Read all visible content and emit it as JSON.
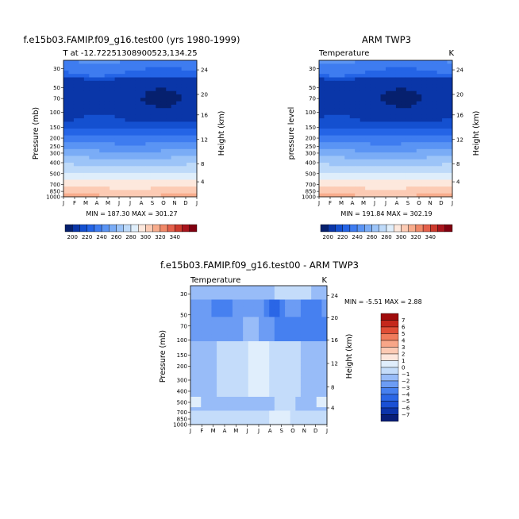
{
  "colors": {
    "scale": [
      "#06206e",
      "#0a36a8",
      "#1450d0",
      "#2464e6",
      "#3e7cf0",
      "#5a94f4",
      "#7aacf6",
      "#9cc4f8",
      "#bedaf9",
      "#dfeefb",
      "#fde8dd",
      "#fccbb4",
      "#f8ac8c",
      "#f08868",
      "#e4604a",
      "#cc3a2c",
      "#a8141c",
      "#800010"
    ],
    "diff_scale": [
      "#081e78",
      "#0c34aa",
      "#1a50d4",
      "#2a66e6",
      "#4680f0",
      "#6c9cf4",
      "#98bcf8",
      "#c4dcfa",
      "#e0eefc",
      "#fde6dc",
      "#fccab4",
      "#f8a688",
      "#f07c5c",
      "#e04e36",
      "#c4281c",
      "#a00c0c"
    ]
  },
  "chart_data": [
    {
      "type": "heatmap",
      "panel": "top-left",
      "title": "f.e15b03.FAMIP.f09_g16.test00 (yrs 1980-1999)",
      "subtitle": "T at -12.72251308900523,134.25",
      "ylabel": "Pressure (mb)",
      "y2label": "Height (km)",
      "x_ticks": [
        "J",
        "F",
        "M",
        "A",
        "M",
        "J",
        "J",
        "A",
        "S",
        "O",
        "N",
        "D",
        "J"
      ],
      "y_ticks": [
        "30",
        "50",
        "70",
        "100",
        "150",
        "200",
        "250",
        "300",
        "400",
        "500",
        "700",
        "850",
        "1000"
      ],
      "y2_ticks": [
        "24",
        "20",
        "16",
        "12",
        "8",
        "4"
      ],
      "stats_text": "MIN = 187.30 MAX = 301.27",
      "min": 187.3,
      "max": 301.27
    },
    {
      "type": "heatmap",
      "panel": "top-right",
      "title": "ARM TWP3",
      "left_label": "Temperature",
      "right_label": "K",
      "ylabel": "pressure level",
      "y2label": "Height (km)",
      "x_ticks": [
        "J",
        "F",
        "M",
        "A",
        "M",
        "J",
        "J",
        "A",
        "S",
        "O",
        "N",
        "D",
        "J"
      ],
      "y_ticks": [
        "30",
        "50",
        "70",
        "100",
        "150",
        "200",
        "250",
        "300",
        "400",
        "500",
        "700",
        "850",
        "1000"
      ],
      "y2_ticks": [
        "24",
        "20",
        "16",
        "12",
        "8",
        "4"
      ],
      "stats_text": "MIN = 191.84 MAX = 302.19",
      "min": 191.84,
      "max": 302.19
    },
    {
      "type": "heatmap",
      "panel": "bottom",
      "title": "f.e15b03.FAMIP.f09_g16.test00 - ARM TWP3",
      "left_label": "Temperature",
      "right_label": "K",
      "ylabel": "Pressure (mb)",
      "y2label": "Height (km)",
      "x_ticks": [
        "J",
        "F",
        "M",
        "A",
        "M",
        "J",
        "J",
        "A",
        "S",
        "O",
        "N",
        "D",
        "J"
      ],
      "y_ticks": [
        "30",
        "50",
        "70",
        "100",
        "150",
        "200",
        "300",
        "400",
        "500",
        "700",
        "850",
        "1000"
      ],
      "y2_ticks": [
        "24",
        "20",
        "16",
        "12",
        "8",
        "4"
      ],
      "stats_text": "MIN =   -5.51 MAX =    2.88",
      "min": -5.51,
      "max": 2.88
    }
  ],
  "colorbar_top": {
    "labels": [
      "200",
      "220",
      "240",
      "260",
      "280",
      "300",
      "320",
      "340"
    ]
  },
  "colorbar_diff": {
    "labels": [
      "7",
      "6",
      "5",
      "4",
      "3",
      "2",
      "1",
      "0",
      "−1",
      "−2",
      "−3",
      "−4",
      "−5",
      "−6",
      "−7"
    ]
  }
}
